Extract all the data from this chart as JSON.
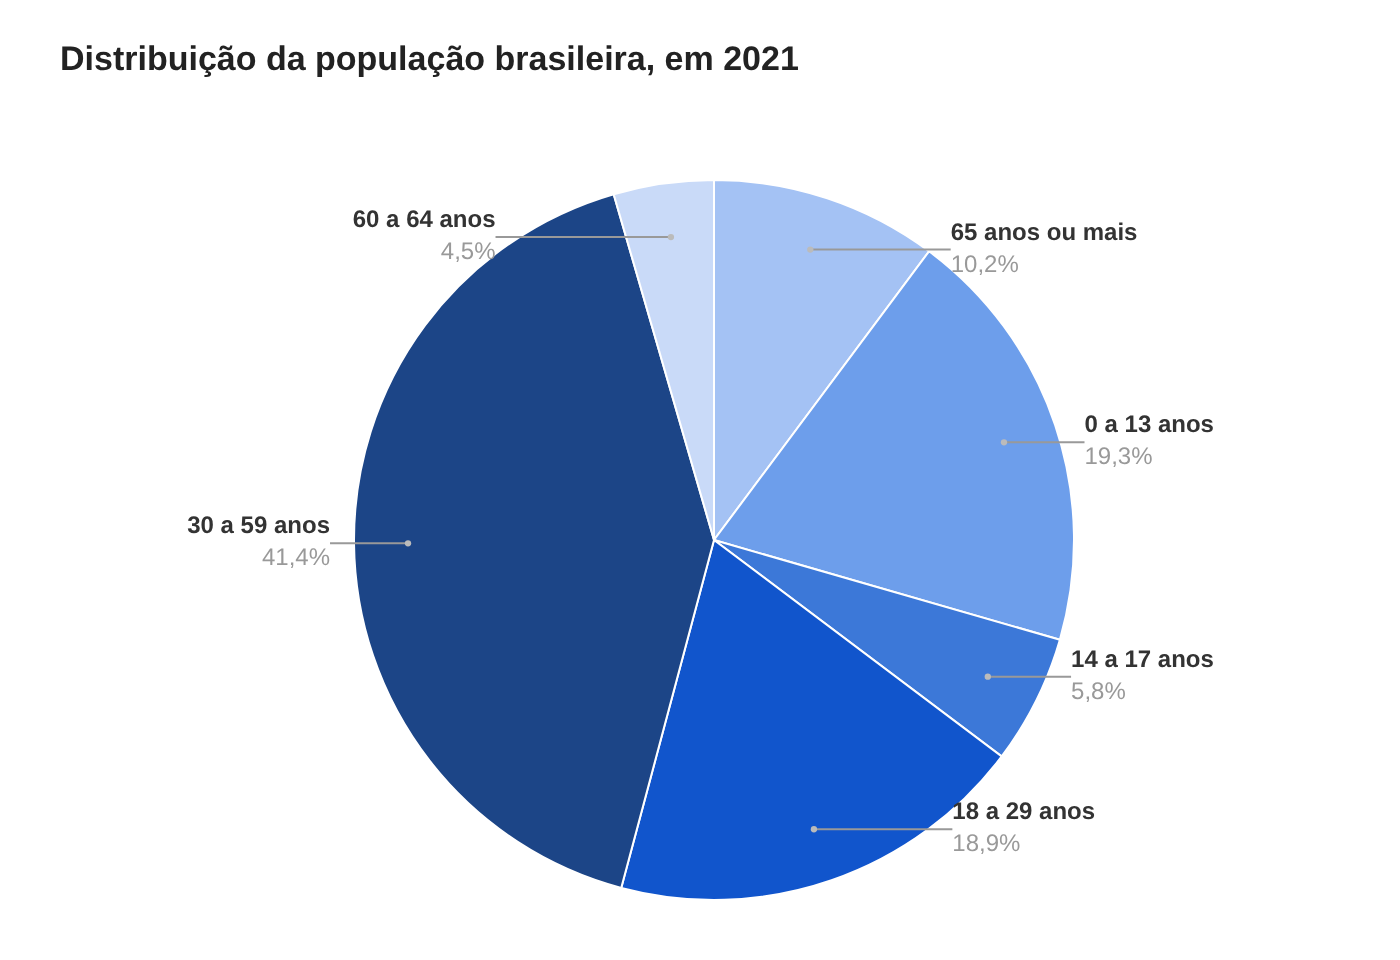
{
  "chart_data": {
    "type": "pie",
    "title": "Distribuição da população brasileira, em 2021",
    "categories": [
      "65 anos ou mais",
      "0 a 13 anos",
      "14 a 17 anos",
      "18 a 29 anos",
      "30 a 59 anos",
      "60 a 64 anos"
    ],
    "values": [
      10.2,
      19.3,
      5.8,
      18.9,
      41.4,
      4.5
    ],
    "value_labels": [
      "10,2%",
      "19,3%",
      "5,8%",
      "18,9%",
      "41,4%",
      "4,5%"
    ],
    "colors": [
      "#a4c2f4",
      "#6d9eeb",
      "#3c78d8",
      "#1155cc",
      "#1c4587",
      "#c9daf8"
    ]
  }
}
